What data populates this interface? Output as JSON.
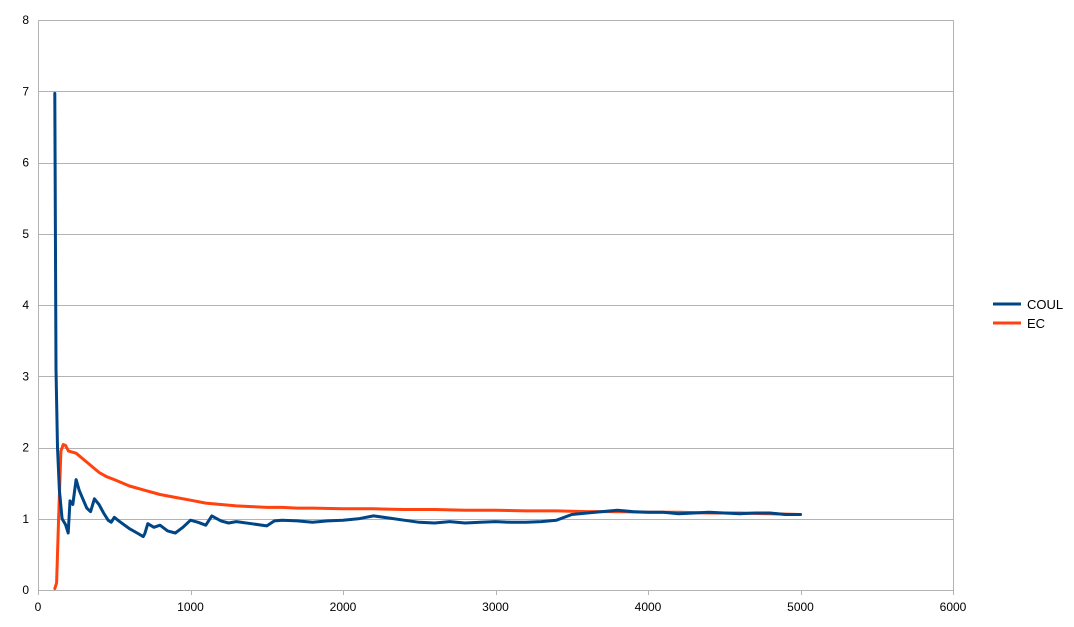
{
  "chart_data": {
    "type": "line",
    "title": "",
    "xlabel": "",
    "ylabel": "",
    "xlim": [
      0,
      6000
    ],
    "ylim": [
      0,
      8
    ],
    "xticks": [
      0,
      1000,
      2000,
      3000,
      4000,
      5000,
      6000
    ],
    "yticks": [
      0,
      1,
      2,
      3,
      4,
      5,
      6,
      7,
      8
    ],
    "xtick_labels": [
      "0",
      "1000",
      "2000",
      "3000",
      "4000",
      "5000",
      "6000"
    ],
    "ytick_labels": [
      "0",
      "1",
      "2",
      "3",
      "4",
      "5",
      "6",
      "7",
      "8"
    ],
    "grid": "horizontal",
    "legend_position": "right",
    "series": [
      {
        "name": "COUL",
        "color": "#004586",
        "points": [
          [
            110,
            6.97
          ],
          [
            118,
            3.1
          ],
          [
            128,
            2.0
          ],
          [
            140,
            1.4
          ],
          [
            158,
            1.0
          ],
          [
            180,
            0.92
          ],
          [
            198,
            0.8
          ],
          [
            210,
            1.25
          ],
          [
            228,
            1.2
          ],
          [
            250,
            1.55
          ],
          [
            270,
            1.4
          ],
          [
            290,
            1.3
          ],
          [
            320,
            1.15
          ],
          [
            345,
            1.1
          ],
          [
            370,
            1.28
          ],
          [
            400,
            1.2
          ],
          [
            430,
            1.08
          ],
          [
            460,
            0.98
          ],
          [
            480,
            0.95
          ],
          [
            500,
            1.02
          ],
          [
            530,
            0.97
          ],
          [
            600,
            0.86
          ],
          [
            650,
            0.8
          ],
          [
            690,
            0.75
          ],
          [
            700,
            0.79
          ],
          [
            720,
            0.93
          ],
          [
            760,
            0.88
          ],
          [
            800,
            0.91
          ],
          [
            850,
            0.83
          ],
          [
            900,
            0.8
          ],
          [
            950,
            0.88
          ],
          [
            1000,
            0.98
          ],
          [
            1050,
            0.95
          ],
          [
            1100,
            0.91
          ],
          [
            1140,
            1.04
          ],
          [
            1200,
            0.97
          ],
          [
            1250,
            0.94
          ],
          [
            1300,
            0.96
          ],
          [
            1400,
            0.93
          ],
          [
            1500,
            0.9
          ],
          [
            1550,
            0.97
          ],
          [
            1600,
            0.98
          ],
          [
            1700,
            0.97
          ],
          [
            1800,
            0.95
          ],
          [
            1900,
            0.97
          ],
          [
            2000,
            0.98
          ],
          [
            2100,
            1.0
          ],
          [
            2200,
            1.04
          ],
          [
            2300,
            1.01
          ],
          [
            2400,
            0.98
          ],
          [
            2500,
            0.95
          ],
          [
            2600,
            0.94
          ],
          [
            2700,
            0.96
          ],
          [
            2800,
            0.94
          ],
          [
            2900,
            0.95
          ],
          [
            3000,
            0.96
          ],
          [
            3100,
            0.95
          ],
          [
            3200,
            0.95
          ],
          [
            3300,
            0.96
          ],
          [
            3400,
            0.98
          ],
          [
            3500,
            1.06
          ],
          [
            3600,
            1.08
          ],
          [
            3700,
            1.1
          ],
          [
            3800,
            1.12
          ],
          [
            3900,
            1.1
          ],
          [
            4000,
            1.09
          ],
          [
            4100,
            1.09
          ],
          [
            4200,
            1.07
          ],
          [
            4300,
            1.08
          ],
          [
            4400,
            1.09
          ],
          [
            4500,
            1.08
          ],
          [
            4600,
            1.07
          ],
          [
            4700,
            1.08
          ],
          [
            4800,
            1.08
          ],
          [
            4900,
            1.06
          ],
          [
            5000,
            1.06
          ]
        ]
      },
      {
        "name": "EC",
        "color": "#ff420e",
        "points": [
          [
            110,
            0.02
          ],
          [
            122,
            0.1
          ],
          [
            135,
            1.0
          ],
          [
            150,
            1.95
          ],
          [
            165,
            2.04
          ],
          [
            180,
            2.03
          ],
          [
            200,
            1.95
          ],
          [
            250,
            1.92
          ],
          [
            300,
            1.83
          ],
          [
            350,
            1.74
          ],
          [
            400,
            1.65
          ],
          [
            450,
            1.59
          ],
          [
            500,
            1.55
          ],
          [
            600,
            1.46
          ],
          [
            700,
            1.4
          ],
          [
            800,
            1.34
          ],
          [
            900,
            1.3
          ],
          [
            1000,
            1.26
          ],
          [
            1100,
            1.22
          ],
          [
            1200,
            1.2
          ],
          [
            1300,
            1.18
          ],
          [
            1400,
            1.17
          ],
          [
            1500,
            1.16
          ],
          [
            1600,
            1.16
          ],
          [
            1700,
            1.15
          ],
          [
            1800,
            1.15
          ],
          [
            2000,
            1.14
          ],
          [
            2200,
            1.14
          ],
          [
            2400,
            1.13
          ],
          [
            2600,
            1.13
          ],
          [
            2800,
            1.12
          ],
          [
            3000,
            1.12
          ],
          [
            3200,
            1.11
          ],
          [
            3400,
            1.11
          ],
          [
            3600,
            1.1
          ],
          [
            3800,
            1.1
          ],
          [
            4000,
            1.09
          ],
          [
            4200,
            1.09
          ],
          [
            4400,
            1.08
          ],
          [
            4600,
            1.08
          ],
          [
            4800,
            1.07
          ],
          [
            5000,
            1.06
          ]
        ]
      }
    ]
  }
}
